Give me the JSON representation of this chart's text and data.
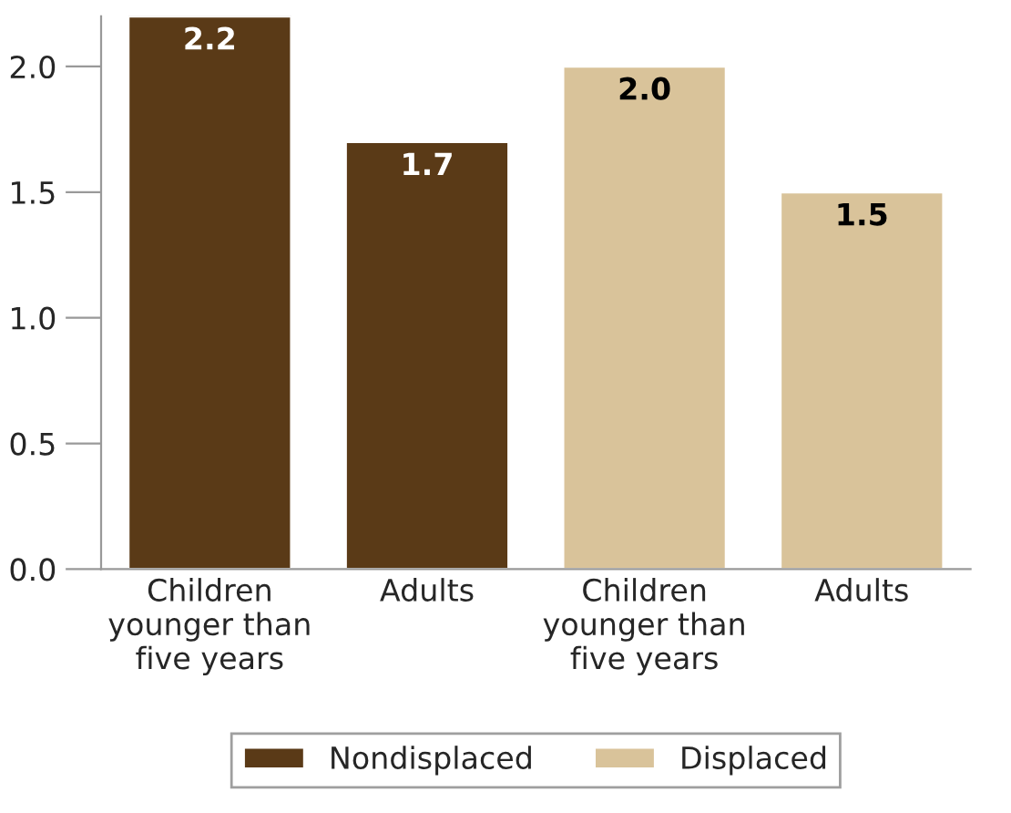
{
  "chart_data": {
    "type": "bar",
    "categories": [
      "Children\nyounger than\nfive years",
      "Adults",
      "Children\nyounger than\nfive years",
      "Adults"
    ],
    "series": [
      {
        "name": "Nondisplaced",
        "color": "#5a3a17",
        "values": [
          2.2,
          1.7,
          null,
          null
        ],
        "value_labels": [
          "2.2",
          "1.7",
          null,
          null
        ]
      },
      {
        "name": "Displaced",
        "color": "#d9c39a",
        "values": [
          null,
          null,
          2.0,
          1.5
        ],
        "value_labels": [
          null,
          null,
          "2.0",
          "1.5"
        ]
      }
    ],
    "ylim": [
      0,
      2.2
    ],
    "yticks": [
      {
        "value": 0,
        "label": "0.0"
      },
      {
        "value": 0.5,
        "label": "0.5"
      },
      {
        "value": 1.0,
        "label": "1.0"
      },
      {
        "value": 1.5,
        "label": "1.5"
      },
      {
        "value": 2.0,
        "label": "2.0"
      }
    ],
    "grid": false,
    "legend": "bottom"
  }
}
